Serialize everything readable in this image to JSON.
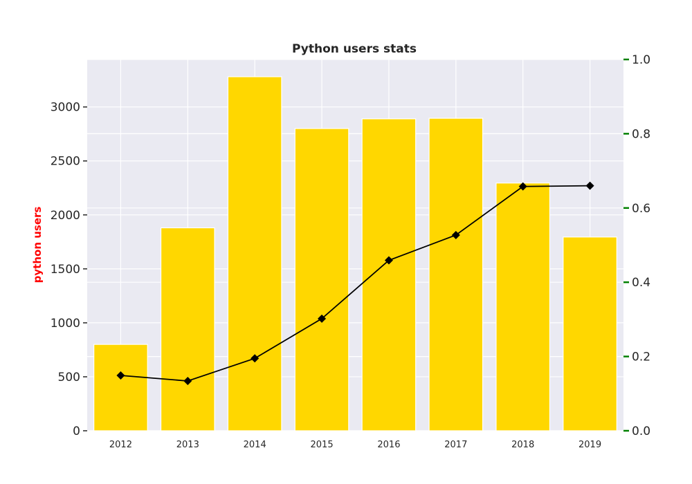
{
  "chart_data": {
    "type": "bar",
    "title": "Python users stats",
    "ylabel": "python users",
    "categories": [
      "2012",
      "2013",
      "2014",
      "2015",
      "2016",
      "2017",
      "2018",
      "2019"
    ],
    "series": [
      {
        "type": "bar",
        "axis": "left",
        "values": [
          800,
          1880,
          3280,
          2800,
          2890,
          2895,
          2295,
          1795
        ]
      },
      {
        "type": "line",
        "axis": "right",
        "marker": "diamond",
        "values": [
          0.149,
          0.134,
          0.195,
          0.302,
          0.459,
          0.527,
          0.658,
          0.66
        ]
      }
    ],
    "ylim": [
      0,
      3440
    ],
    "yticks": [
      "0",
      "500",
      "1000",
      "1500",
      "2000",
      "2500",
      "3000"
    ],
    "y2lim": [
      0,
      1.0
    ],
    "y2ticks": [
      "0.0",
      "0.2",
      "0.4",
      "0.6",
      "0.8",
      "1.0"
    ],
    "grid": true,
    "colors": {
      "bar": "#ffd700",
      "line": "#000000",
      "background": "#eaeaf2",
      "grid": "#ffffff",
      "ylabel": "#ff0000",
      "right_ticks": "#008000"
    }
  }
}
